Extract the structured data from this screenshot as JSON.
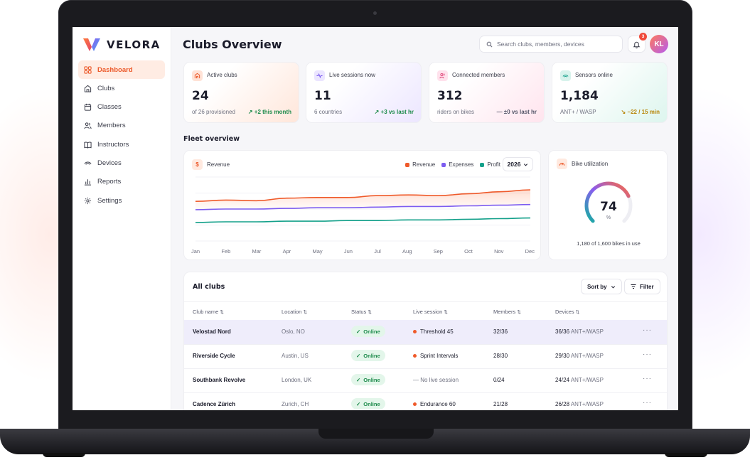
{
  "app": {
    "brand": "VELORA",
    "page_title": "Clubs Overview"
  },
  "sidebar": {
    "items": [
      {
        "label": "Dashboard",
        "icon": "grid-icon",
        "active": true
      },
      {
        "label": "Clubs",
        "icon": "home-icon"
      },
      {
        "label": "Classes",
        "icon": "calendar-icon"
      },
      {
        "label": "Members",
        "icon": "users-icon"
      },
      {
        "label": "Instructors",
        "icon": "book-icon"
      },
      {
        "label": "Devices",
        "icon": "signal-icon"
      },
      {
        "label": "Reports",
        "icon": "bar-chart-icon"
      },
      {
        "label": "Settings",
        "icon": "gear-icon"
      }
    ]
  },
  "header": {
    "search_placeholder": "Search clubs, members, devices",
    "notification_count": "3",
    "avatar_initials": "KL"
  },
  "kpis": [
    {
      "label": "Active clubs",
      "value": "24",
      "sub": "of 26 provisioned",
      "delta": "+2 this month",
      "delta_color": "#1c8a4a",
      "trend": "up",
      "accent": "#ec5a2b"
    },
    {
      "label": "Live sessions now",
      "value": "11",
      "sub": "6 countries",
      "delta": "+3 vs last hr",
      "delta_color": "#1c8a4a",
      "trend": "up",
      "accent": "#7c5cf0"
    },
    {
      "label": "Connected members",
      "value": "312",
      "sub": "riders on bikes",
      "delta": "±0 vs last hr",
      "delta_color": "#55576a",
      "trend": "flat",
      "accent": "#e0487a"
    },
    {
      "label": "Sensors online",
      "value": "1,184",
      "sub": "ANT+ / WASP",
      "delta": "−22 / 15 min",
      "delta_color": "#b8860b",
      "trend": "down",
      "accent": "#13a08a"
    }
  ],
  "fleet": {
    "section_title": "Fleet overview",
    "revenue_card": {
      "title": "Revenue",
      "year": "2026",
      "legend": [
        {
          "name": "Revenue",
          "color": "#ef5a2a"
        },
        {
          "name": "Expenses",
          "color": "#7c5cf0"
        },
        {
          "name": "Profit",
          "color": "#13a08a"
        }
      ]
    },
    "utilization": {
      "title": "Bike utilization",
      "value": "74",
      "unit": "%",
      "fraction": 0.74,
      "sub": "1,180 of 1,600 bikes in use"
    }
  },
  "chart_data": {
    "type": "line",
    "categories": [
      "Jan",
      "Feb",
      "Mar",
      "Apr",
      "May",
      "Jun",
      "Jul",
      "Aug",
      "Sep",
      "Oct",
      "Nov",
      "Dec"
    ],
    "series": [
      {
        "name": "Revenue",
        "color": "#ef5a2a",
        "values": [
          62,
          64,
          63,
          67,
          68,
          68,
          71,
          72,
          71,
          74,
          77,
          80
        ]
      },
      {
        "name": "Expenses",
        "color": "#7c5cf0",
        "values": [
          49,
          50,
          50,
          51,
          52,
          52,
          53,
          54,
          54,
          55,
          56,
          57
        ]
      },
      {
        "name": "Profit",
        "color": "#13a08a",
        "values": [
          29,
          30,
          30,
          31,
          31,
          32,
          32,
          33,
          33,
          34,
          35,
          36
        ]
      }
    ],
    "ylim": [
      0,
      100
    ],
    "grid": true,
    "legend_position": "top-right",
    "area_fill": "Revenue"
  },
  "table": {
    "title": "All clubs",
    "sort_label": "Sort by",
    "filter_label": "Filter",
    "columns": [
      "Club name",
      "Location",
      "Status",
      "Live session",
      "Members",
      "Devices"
    ],
    "rows": [
      {
        "name": "Velostad Nord",
        "location": "Oslo, NO",
        "status": "Online",
        "session": "Threshold 45",
        "live": true,
        "members": "32/36",
        "devices": "36/36",
        "protocol": "ANT+/WASP",
        "selected": true
      },
      {
        "name": "Riverside Cycle",
        "location": "Austin, US",
        "status": "Online",
        "session": "Sprint Intervals",
        "live": true,
        "members": "28/30",
        "devices": "29/30",
        "protocol": "ANT+/WASP"
      },
      {
        "name": "Southbank Revolve",
        "location": "London, UK",
        "status": "Online",
        "session": "— No live session",
        "live": false,
        "members": "0/24",
        "devices": "24/24",
        "protocol": "ANT+/WASP"
      },
      {
        "name": "Cadence Zürich",
        "location": "Zurich, CH",
        "status": "Online",
        "session": "Endurance 60",
        "live": true,
        "members": "21/28",
        "devices": "26/28",
        "protocol": "ANT+/WASP"
      }
    ],
    "more_label": "···"
  }
}
